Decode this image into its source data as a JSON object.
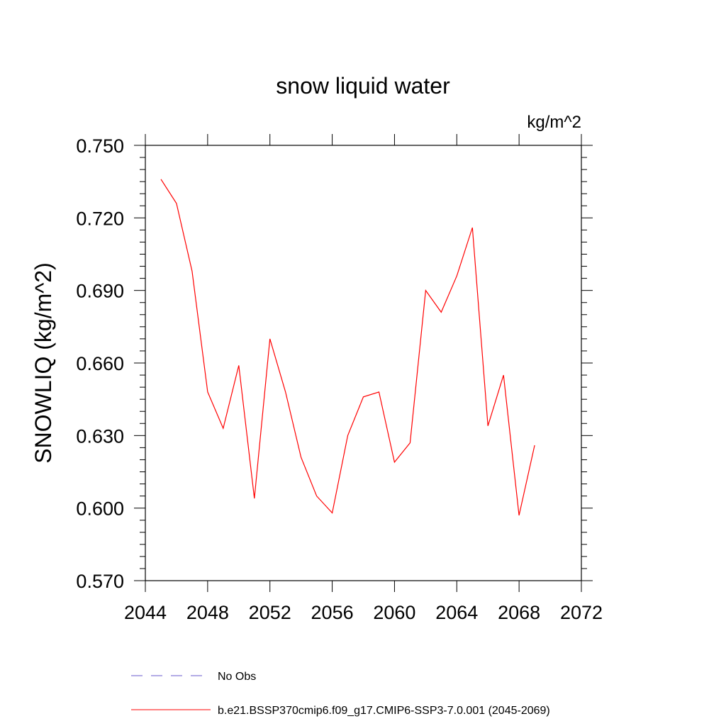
{
  "chart_data": {
    "type": "line",
    "title": "snow liquid water",
    "units_label": "kg/m^2",
    "ylabel": "SNOWLIQ  (kg/m^2)",
    "xlabel": "",
    "xlim": [
      2044,
      2072
    ],
    "ylim": [
      0.57,
      0.75
    ],
    "x_ticks": [
      2044,
      2048,
      2052,
      2056,
      2060,
      2064,
      2068,
      2072
    ],
    "x_tick_labels": [
      "2044",
      "2048",
      "2052",
      "2056",
      "2060",
      "2064",
      "2068",
      "2072"
    ],
    "y_ticks": [
      0.57,
      0.6,
      0.63,
      0.66,
      0.69,
      0.72,
      0.75
    ],
    "y_tick_labels": [
      "0.570",
      "0.600",
      "0.630",
      "0.660",
      "0.690",
      "0.720",
      "0.750"
    ],
    "grid": false,
    "series": [
      {
        "name": "b.e21.BSSP370cmip6.f09_g17.CMIP6-SSP3-7.0.001 (2045-2069)",
        "color": "#ff0000",
        "x": [
          2045,
          2046,
          2047,
          2048,
          2049,
          2050,
          2051,
          2052,
          2053,
          2054,
          2055,
          2056,
          2057,
          2058,
          2059,
          2060,
          2061,
          2062,
          2063,
          2064,
          2065,
          2066,
          2067,
          2068,
          2069
        ],
        "y": [
          0.736,
          0.726,
          0.698,
          0.648,
          0.633,
          0.659,
          0.604,
          0.67,
          0.648,
          0.621,
          0.605,
          0.598,
          0.63,
          0.646,
          0.648,
          0.619,
          0.627,
          0.69,
          0.681,
          0.696,
          0.716,
          0.634,
          0.655,
          0.597,
          0.626
        ]
      }
    ],
    "legend": {
      "placement": "bottom",
      "entries": [
        {
          "label": "No Obs",
          "color": "#6a5acd",
          "style": "dashed"
        },
        {
          "label": "b.e21.BSSP370cmip6.f09_g17.CMIP6-SSP3-7.0.001 (2045-2069)",
          "color": "#ff0000",
          "style": "solid"
        }
      ]
    }
  }
}
